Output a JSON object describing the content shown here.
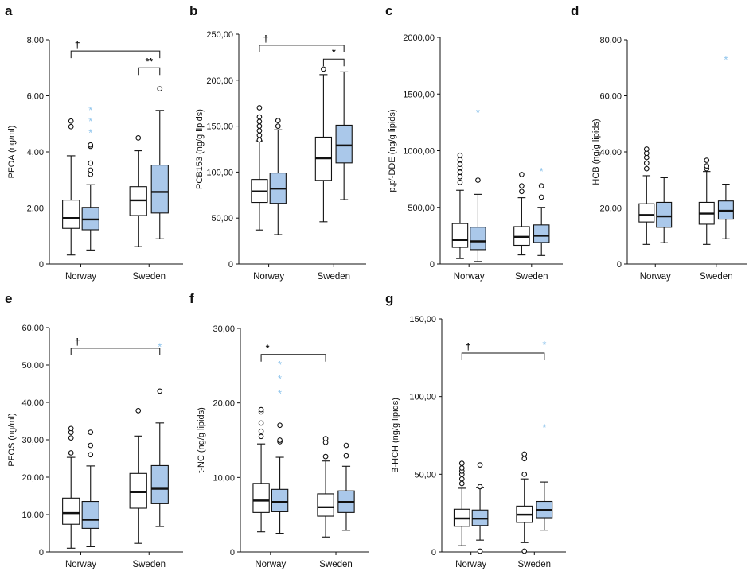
{
  "colors": {
    "white_box": "#ffffff",
    "blue_box": "#aac8ea",
    "line": "#111111",
    "star_outlier": "#8ec4ec"
  },
  "groups": [
    "Norway",
    "Sweden"
  ],
  "chart_data": [
    {
      "type": "box",
      "panel": "a",
      "ylabel": "PFOA (ng/ml)",
      "ylim": [
        0,
        8
      ],
      "yticks": [
        0,
        2,
        4,
        6,
        8
      ],
      "ytick_labels": [
        "0",
        "2,00",
        "4,00",
        "6,00",
        "8,00"
      ],
      "categories": [
        "Norway",
        "Sweden"
      ],
      "boxes": [
        {
          "group": "Norway",
          "fill": "white",
          "min": 0.32,
          "q1": 1.27,
          "median": 1.64,
          "q3": 2.28,
          "max": 3.86,
          "outliers": [
            4.9,
            5.1
          ],
          "extremes": []
        },
        {
          "group": "Norway",
          "fill": "blue",
          "min": 0.5,
          "q1": 1.22,
          "median": 1.59,
          "q3": 2.02,
          "max": 2.83,
          "outliers": [
            3.2,
            3.35,
            3.6,
            4.2,
            4.25
          ],
          "extremes": [
            4.7,
            5.1,
            5.5
          ]
        },
        {
          "group": "Sweden",
          "fill": "white",
          "min": 0.62,
          "q1": 1.73,
          "median": 2.27,
          "q3": 2.76,
          "max": 4.04,
          "outliers": [
            4.5
          ],
          "extremes": []
        },
        {
          "group": "Sweden",
          "fill": "blue",
          "min": 0.9,
          "q1": 1.82,
          "median": 2.57,
          "q3": 3.53,
          "max": 5.48,
          "outliers": [
            6.25
          ],
          "extremes": []
        }
      ],
      "brackets": [
        {
          "label": "†",
          "from": 0,
          "to": 3,
          "y": 7.6,
          "level": 1
        },
        {
          "label": "**",
          "from": 2,
          "to": 3,
          "y": 7.0,
          "level": 2
        }
      ]
    },
    {
      "type": "box",
      "panel": "b",
      "ylabel": "PCB153 (ng/g lipids)",
      "ylim": [
        0,
        250
      ],
      "yticks": [
        0,
        50,
        100,
        150,
        200,
        250
      ],
      "ytick_labels": [
        "0",
        "50,00",
        "100,00",
        "150,00",
        "200,00",
        "250,00"
      ],
      "categories": [
        "Norway",
        "Sweden"
      ],
      "boxes": [
        {
          "group": "Norway",
          "fill": "white",
          "min": 37,
          "q1": 67,
          "median": 79,
          "q3": 92,
          "max": 134,
          "outliers": [
            135,
            140,
            145,
            150,
            155,
            160,
            170
          ],
          "extremes": []
        },
        {
          "group": "Norway",
          "fill": "blue",
          "min": 32,
          "q1": 66,
          "median": 82,
          "q3": 99,
          "max": 146,
          "outliers": [
            150,
            156
          ],
          "extremes": []
        },
        {
          "group": "Sweden",
          "fill": "white",
          "min": 46,
          "q1": 91,
          "median": 115,
          "q3": 138,
          "max": 206,
          "outliers": [
            212
          ],
          "extremes": []
        },
        {
          "group": "Sweden",
          "fill": "blue",
          "min": 70,
          "q1": 110,
          "median": 129,
          "q3": 151,
          "max": 209,
          "outliers": [],
          "extremes": []
        }
      ],
      "brackets": [
        {
          "label": "†",
          "from": 0,
          "to": 3,
          "y": 238,
          "level": 1
        },
        {
          "label": "*",
          "from": 2,
          "to": 3,
          "y": 223,
          "level": 2
        }
      ]
    },
    {
      "type": "box",
      "panel": "c",
      "ylabel": "p,p′-DDE (ng/g lipids)",
      "ylim": [
        0,
        2000
      ],
      "yticks": [
        0,
        500,
        1000,
        1500,
        2000
      ],
      "ytick_labels": [
        "0",
        "500,00",
        "1000,00",
        "1500,00",
        "2000,00"
      ],
      "categories": [
        "Norway",
        "Sweden"
      ],
      "boxes": [
        {
          "group": "Norway",
          "fill": "white",
          "min": 48,
          "q1": 147,
          "median": 212,
          "q3": 357,
          "max": 651,
          "outliers": [
            720,
            770,
            810,
            850,
            880,
            920,
            960
          ],
          "extremes": []
        },
        {
          "group": "Norway",
          "fill": "blue",
          "min": 22,
          "q1": 127,
          "median": 200,
          "q3": 325,
          "max": 615,
          "outliers": [
            740
          ],
          "extremes": [
            1340
          ]
        },
        {
          "group": "Sweden",
          "fill": "white",
          "min": 80,
          "q1": 165,
          "median": 240,
          "q3": 330,
          "max": 585,
          "outliers": [
            640,
            690,
            790
          ],
          "extremes": []
        },
        {
          "group": "Sweden",
          "fill": "blue",
          "min": 75,
          "q1": 190,
          "median": 250,
          "q3": 345,
          "max": 500,
          "outliers": [
            590,
            690
          ],
          "extremes": [
            820
          ]
        }
      ],
      "brackets": []
    },
    {
      "type": "box",
      "panel": "d",
      "ylabel": "HCB (ng/g lipids)",
      "ylim": [
        0,
        80
      ],
      "yticks": [
        0,
        20,
        40,
        60,
        80
      ],
      "ytick_labels": [
        "0",
        "20,00",
        "40,00",
        "60,00",
        "80,00"
      ],
      "categories": [
        "Norway",
        "Sweden"
      ],
      "boxes": [
        {
          "group": "Norway",
          "fill": "white",
          "min": 7,
          "q1": 15,
          "median": 17.5,
          "q3": 21.5,
          "max": 31.5,
          "outliers": [
            34,
            36,
            38,
            39.5,
            41
          ],
          "extremes": []
        },
        {
          "group": "Norway",
          "fill": "blue",
          "min": 7.6,
          "q1": 13.1,
          "median": 17,
          "q3": 22,
          "max": 30.8,
          "outliers": [],
          "extremes": []
        },
        {
          "group": "Sweden",
          "fill": "white",
          "min": 7,
          "q1": 14.2,
          "median": 18,
          "q3": 22,
          "max": 33,
          "outliers": [
            34,
            35,
            37
          ],
          "extremes": []
        },
        {
          "group": "Sweden",
          "fill": "blue",
          "min": 9,
          "q1": 16,
          "median": 19,
          "q3": 22.5,
          "max": 28.5,
          "outliers": [],
          "extremes": [
            73
          ]
        }
      ],
      "brackets": []
    },
    {
      "type": "box",
      "panel": "e",
      "ylabel": "PFOS (ng/ml)",
      "ylim": [
        0,
        60
      ],
      "yticks": [
        0,
        10,
        20,
        30,
        40,
        50,
        60
      ],
      "ytick_labels": [
        "0",
        "10,00",
        "20,00",
        "30,00",
        "40,00",
        "50,00",
        "60,00"
      ],
      "categories": [
        "Norway",
        "Sweden"
      ],
      "boxes": [
        {
          "group": "Norway",
          "fill": "white",
          "min": 1,
          "q1": 7.4,
          "median": 10.4,
          "q3": 14.4,
          "max": 25.3,
          "outliers": [
            26.5,
            30.5,
            32,
            33
          ],
          "extremes": []
        },
        {
          "group": "Norway",
          "fill": "blue",
          "min": 1.4,
          "q1": 6.3,
          "median": 8.6,
          "q3": 13.5,
          "max": 23,
          "outliers": [
            26,
            28.5,
            32
          ],
          "extremes": []
        },
        {
          "group": "Sweden",
          "fill": "white",
          "min": 2.3,
          "q1": 11.7,
          "median": 16,
          "q3": 21,
          "max": 31,
          "outliers": [
            37.8
          ],
          "extremes": []
        },
        {
          "group": "Sweden",
          "fill": "blue",
          "min": 6.8,
          "q1": 12.9,
          "median": 16.9,
          "q3": 23.1,
          "max": 34.5,
          "outliers": [
            43
          ],
          "extremes": [
            55
          ]
        }
      ],
      "brackets": [
        {
          "label": "†",
          "from": 0,
          "to": 3,
          "y": 54.5,
          "level": 1
        }
      ]
    },
    {
      "type": "box",
      "panel": "f",
      "ylabel": "t-NC (ng/g lipids)",
      "ylim": [
        0,
        30
      ],
      "yticks": [
        0,
        10,
        20,
        30
      ],
      "ytick_labels": [
        "0",
        "10,00",
        "20,00",
        "30,00"
      ],
      "categories": [
        "Norway",
        "Sweden"
      ],
      "boxes": [
        {
          "group": "Norway",
          "fill": "white",
          "min": 2.7,
          "q1": 5.3,
          "median": 6.9,
          "q3": 9.2,
          "max": 14.5,
          "outliers": [
            15.5,
            16.2,
            17.3,
            18.8,
            19.1
          ],
          "extremes": []
        },
        {
          "group": "Norway",
          "fill": "blue",
          "min": 2.5,
          "q1": 5.4,
          "median": 6.7,
          "q3": 8.4,
          "max": 12.7,
          "outliers": [
            14.8,
            15,
            17
          ],
          "extremes": [
            21.3,
            23.3,
            25.2
          ]
        },
        {
          "group": "Sweden",
          "fill": "white",
          "min": 2,
          "q1": 4.8,
          "median": 6,
          "q3": 7.8,
          "max": 12.2,
          "outliers": [
            12.8,
            14.7,
            15.2
          ],
          "extremes": []
        },
        {
          "group": "Sweden",
          "fill": "blue",
          "min": 2.9,
          "q1": 5.3,
          "median": 6.7,
          "q3": 8.2,
          "max": 11.5,
          "outliers": [
            12.9,
            14.3
          ],
          "extremes": []
        }
      ],
      "brackets": [
        {
          "label": "*",
          "from": 0,
          "to": 2,
          "y": 26.5,
          "level": 1
        }
      ]
    },
    {
      "type": "box",
      "panel": "g",
      "ylabel": "B-HCH (ng/g lipids)",
      "ylim": [
        0,
        150
      ],
      "yticks": [
        0,
        50,
        100,
        150
      ],
      "ytick_labels": [
        "0",
        "50,00",
        "100,00",
        "150,00"
      ],
      "categories": [
        "Norway",
        "Sweden"
      ],
      "boxes": [
        {
          "group": "Norway",
          "fill": "white",
          "min": 4,
          "q1": 16.5,
          "median": 21.5,
          "q3": 27.5,
          "max": 41,
          "outliers": [
            44,
            47,
            50,
            52,
            54,
            57
          ],
          "extremes": []
        },
        {
          "group": "Norway",
          "fill": "blue",
          "min": 7.6,
          "q1": 17,
          "median": 21.4,
          "q3": 27,
          "max": 41.3,
          "outliers": [
            0.5,
            42,
            56
          ],
          "extremes": []
        },
        {
          "group": "Sweden",
          "fill": "white",
          "min": 6,
          "q1": 19,
          "median": 24,
          "q3": 29.5,
          "max": 47,
          "outliers": [
            0.5,
            50,
            60,
            63
          ],
          "extremes": []
        },
        {
          "group": "Sweden",
          "fill": "blue",
          "min": 14,
          "q1": 22,
          "median": 27,
          "q3": 32.5,
          "max": 45,
          "outliers": [],
          "extremes": [
            80.5,
            133.5
          ]
        }
      ],
      "brackets": [
        {
          "label": "†",
          "from": 0,
          "to": 3,
          "y": 128,
          "level": 1
        }
      ]
    }
  ]
}
